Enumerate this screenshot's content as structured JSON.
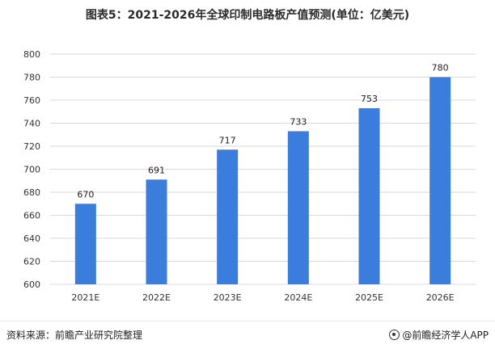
{
  "title": "图表5：2021-2026年全球印制电路板产值预测(单位：亿美元)",
  "source": "资料来源：前瞻产业研究院整理",
  "brand": "@前瞻经济学人APP",
  "colors": {
    "bar": "#3b7ddd",
    "grid": "#d9d9d9",
    "axis_text": "#333333"
  },
  "chart_data": {
    "type": "bar",
    "categories": [
      "2021E",
      "2022E",
      "2023E",
      "2024E",
      "2025E",
      "2026E"
    ],
    "values": [
      670,
      691,
      717,
      733,
      753,
      780
    ],
    "data_labels": [
      "670",
      "691",
      "717",
      "733",
      "753",
      "780"
    ],
    "ylim": [
      600,
      800
    ],
    "yticks": [
      600,
      620,
      640,
      660,
      680,
      700,
      720,
      740,
      760,
      780,
      800
    ],
    "grid": true
  }
}
